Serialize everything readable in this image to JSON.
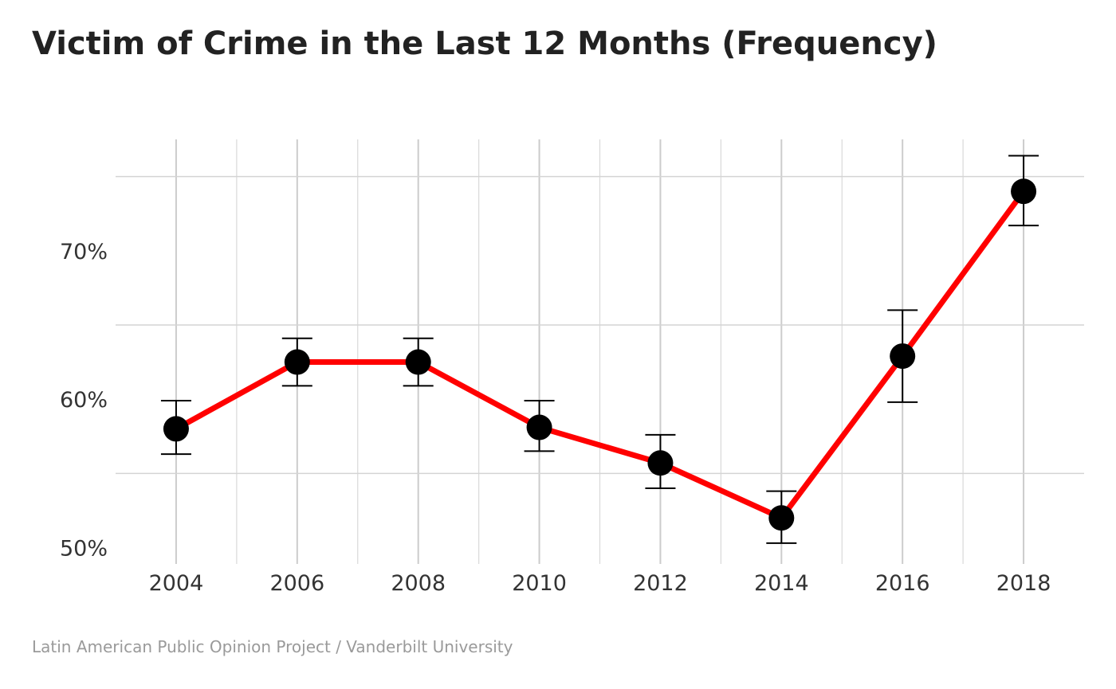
{
  "chart_data": {
    "type": "line",
    "title": "Victim of Crime in the Last 12 Months (Frequency)",
    "caption": "Latin American Public Opinion Project / Vanderbilt University",
    "xlabel": "",
    "ylabel": "",
    "x": [
      2004,
      2006,
      2008,
      2010,
      2012,
      2014,
      2016,
      2018
    ],
    "x_tick_labels": [
      "2004",
      "2006",
      "2008",
      "2010",
      "2012",
      "2014",
      "2016",
      "2018"
    ],
    "y_tick_values": [
      0.5,
      0.6,
      0.7
    ],
    "y_tick_labels": [
      "50%",
      "60%",
      "70%"
    ],
    "xlim": [
      2003.0,
      2019.0
    ],
    "ylim": [
      0.489,
      0.775
    ],
    "grid": true,
    "series": [
      {
        "values": [
          0.58,
          0.625,
          0.625,
          0.581,
          0.557,
          0.52,
          0.629,
          0.74
        ],
        "ci_lower": [
          0.563,
          0.609,
          0.609,
          0.565,
          0.54,
          0.503,
          0.598,
          0.717
        ],
        "ci_upper": [
          0.599,
          0.641,
          0.641,
          0.599,
          0.576,
          0.538,
          0.66,
          0.764
        ],
        "line_color": "#ff0000",
        "marker_color": "#000000",
        "errorbar_color": "#000000"
      }
    ]
  }
}
